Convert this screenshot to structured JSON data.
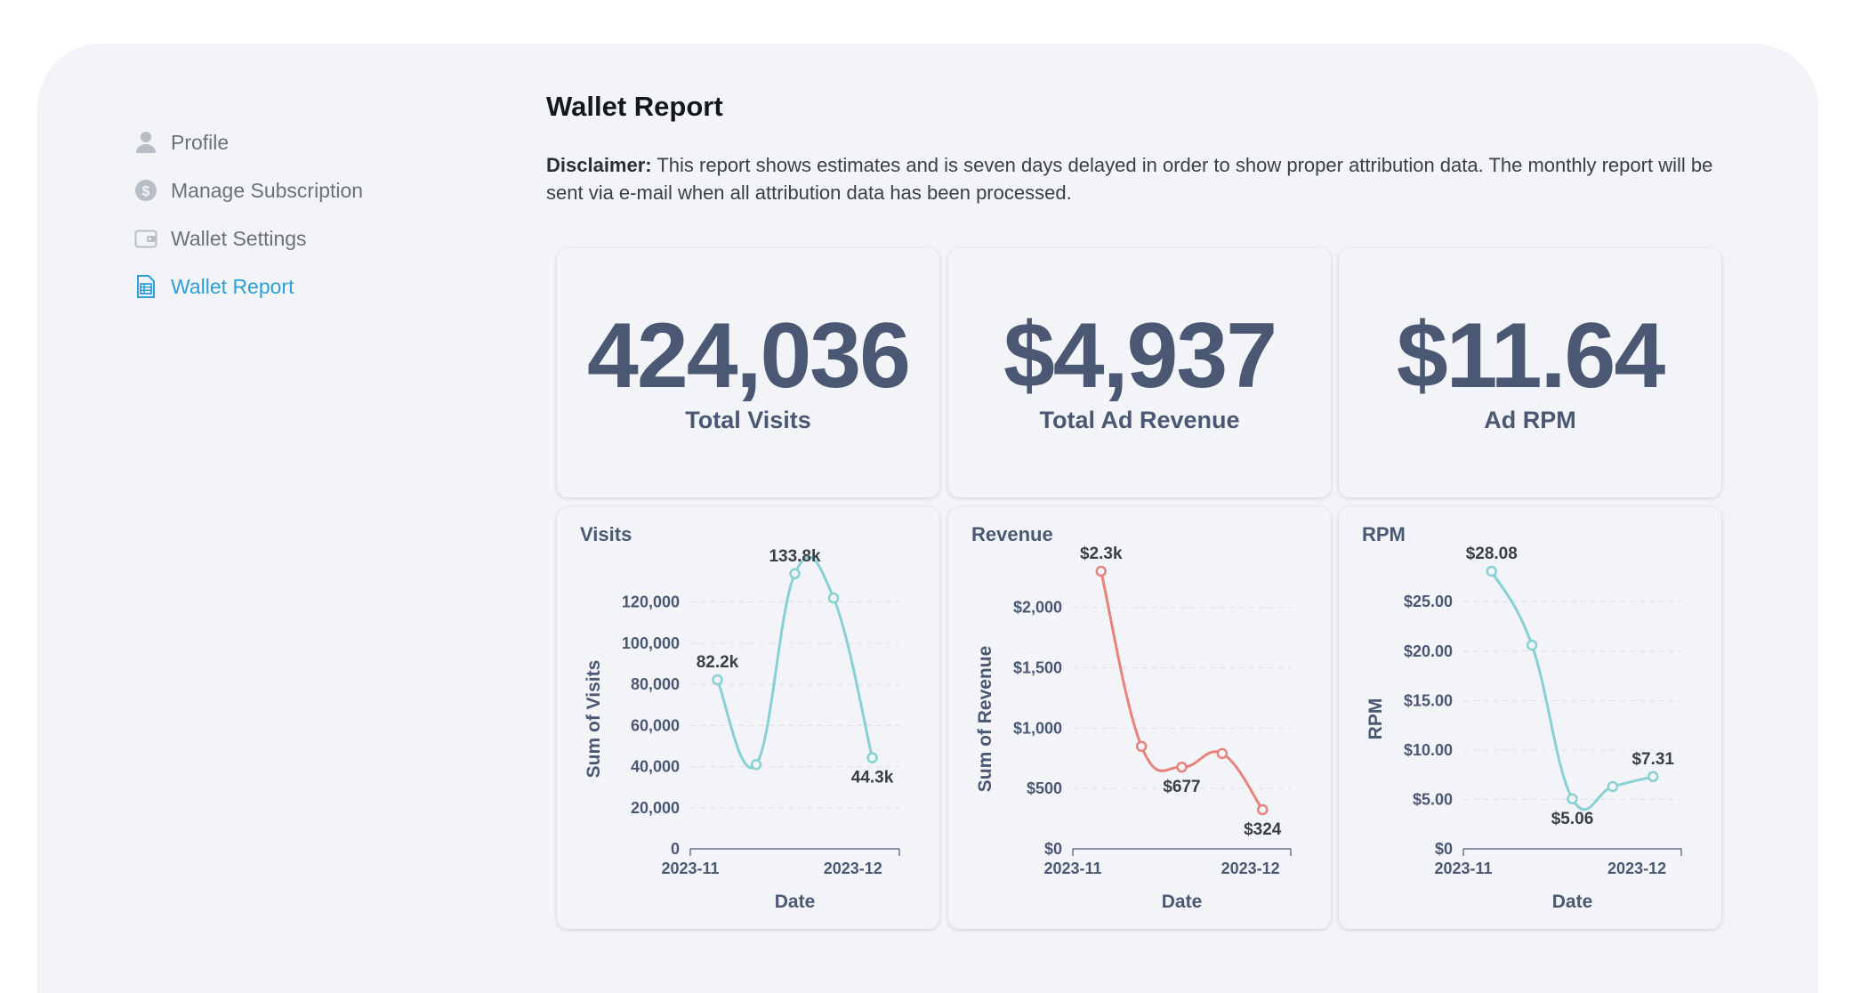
{
  "sidebar": {
    "items": [
      {
        "label": "Profile",
        "icon": "user-icon"
      },
      {
        "label": "Manage Subscription",
        "icon": "dollar-circle-icon"
      },
      {
        "label": "Wallet Settings",
        "icon": "wallet-icon"
      },
      {
        "label": "Wallet Report",
        "icon": "report-icon",
        "active": true
      }
    ]
  },
  "page": {
    "title": "Wallet Report",
    "disclaimer_label": "Disclaimer:",
    "disclaimer_text": "This report shows estimates and is seven days delayed in order to show proper attribution data. The monthly report will be sent via e-mail when all attribution data has been processed."
  },
  "kpis": [
    {
      "value": "424,036",
      "label": "Total Visits"
    },
    {
      "value": "$4,937",
      "label": "Total Ad Revenue"
    },
    {
      "value": "$11.64",
      "label": "Ad RPM"
    }
  ],
  "colors": {
    "accent": "#2d9fd8",
    "kpi_text": "#4b5873",
    "visits_line": "#88d1d3",
    "revenue_line": "#e8827c",
    "rpm_line": "#88d1d3"
  },
  "chart_data": [
    {
      "type": "line",
      "title": "Visits",
      "xlabel": "Date",
      "ylabel": "Sum of Visits",
      "x": [
        0,
        1,
        2,
        3,
        4
      ],
      "values": [
        82200,
        41000,
        133800,
        122000,
        44300
      ],
      "xticks": [
        {
          "x": -0.7,
          "label": "2023-11"
        },
        {
          "x": 3.5,
          "label": "2023-12"
        }
      ],
      "xlim": [
        -0.7,
        4.7
      ],
      "ylim": [
        0,
        135000
      ],
      "yticks": [
        0,
        20000,
        40000,
        60000,
        80000,
        100000,
        120000
      ],
      "ytick_labels": [
        "0",
        "20,000",
        "40,000",
        "60,000",
        "80,000",
        "100,000",
        "120,000"
      ],
      "data_labels": [
        {
          "index": 0,
          "text": "82.2k",
          "pos": "above"
        },
        {
          "index": 2,
          "text": "133.8k",
          "pos": "above"
        },
        {
          "index": 4,
          "text": "44.3k",
          "pos": "below"
        }
      ],
      "color": "#88d1d3"
    },
    {
      "type": "line",
      "title": "Revenue",
      "xlabel": "Date",
      "ylabel": "Sum of Revenue",
      "x": [
        0,
        1,
        2,
        3,
        4
      ],
      "values": [
        2300,
        850,
        677,
        790,
        324
      ],
      "xticks": [
        {
          "x": -0.7,
          "label": "2023-11"
        },
        {
          "x": 3.7,
          "label": "2023-12"
        }
      ],
      "xlim": [
        -0.7,
        4.7
      ],
      "ylim": [
        0,
        2300
      ],
      "yticks": [
        0,
        500,
        1000,
        1500,
        2000
      ],
      "ytick_labels": [
        "$0",
        "$500",
        "$1,000",
        "$1,500",
        "$2,000"
      ],
      "data_labels": [
        {
          "index": 0,
          "text": "$2.3k",
          "pos": "above"
        },
        {
          "index": 2,
          "text": "$677",
          "pos": "below"
        },
        {
          "index": 4,
          "text": "$324",
          "pos": "below"
        }
      ],
      "color": "#e8827c"
    },
    {
      "type": "line",
      "title": "RPM",
      "xlabel": "Date",
      "ylabel": "RPM",
      "x": [
        0,
        1,
        2,
        3,
        4
      ],
      "values": [
        28.08,
        20.6,
        5.06,
        6.3,
        7.31
      ],
      "xticks": [
        {
          "x": -0.7,
          "label": "2023-11"
        },
        {
          "x": 3.6,
          "label": "2023-12"
        }
      ],
      "xlim": [
        -0.7,
        4.7
      ],
      "ylim": [
        0,
        28.08
      ],
      "yticks": [
        0,
        5,
        10,
        15,
        20,
        25
      ],
      "ytick_labels": [
        "$0",
        "$5.00",
        "$10.00",
        "$15.00",
        "$20.00",
        "$25.00"
      ],
      "data_labels": [
        {
          "index": 0,
          "text": "$28.08",
          "pos": "above"
        },
        {
          "index": 2,
          "text": "$5.06",
          "pos": "below"
        },
        {
          "index": 4,
          "text": "$7.31",
          "pos": "above"
        }
      ],
      "color": "#88d1d3"
    }
  ]
}
